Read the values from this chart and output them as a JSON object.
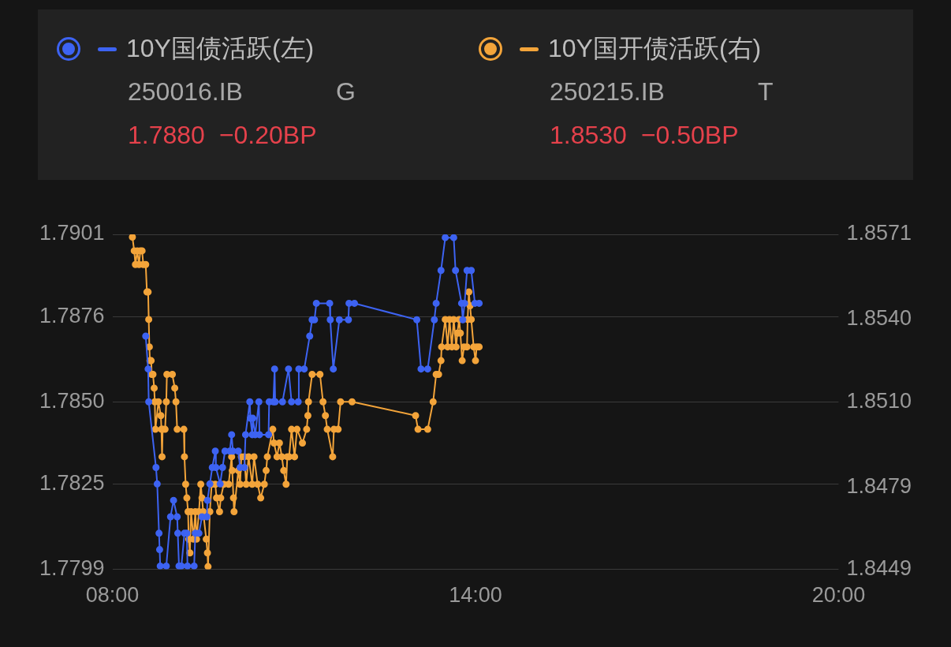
{
  "chart_data": {
    "type": "line",
    "legend": "top",
    "grid": "y",
    "marker": "circle",
    "line_style": "solid",
    "xlim": [
      8,
      20
    ],
    "xticks": [
      {
        "value": 8,
        "label": "08:00"
      },
      {
        "value": 14,
        "label": "14:00"
      },
      {
        "value": 20,
        "label": "20:00"
      }
    ],
    "ylim": [
      1.7799,
      1.7901
    ],
    "yticks": [
      1.7799,
      1.7825,
      {
        "value": 1.785,
        "label": "1.7850"
      },
      1.7876,
      1.7901
    ],
    "y2lim": [
      1.8449,
      1.8571
    ],
    "y2ticks": [
      1.8449,
      1.8479,
      {
        "value": 1.851,
        "label": "1.8510"
      },
      {
        "value": 1.854,
        "label": "1.8540"
      },
      1.8571
    ],
    "annotations": [
      "250016.IB",
      "G",
      "1.7880",
      "−0.20BP",
      "250215.IB",
      "T",
      "1.8530",
      "−0.50BP"
    ],
    "series": [
      {
        "name": "10Y国债活跃(左)",
        "color": "#3d63f2",
        "axis": "y",
        "x": [
          8.55,
          8.59,
          8.6,
          8.72,
          8.74,
          8.77,
          8.78,
          8.79,
          8.89,
          8.96,
          9.01,
          9.07,
          9.08,
          9.1,
          9.14,
          9.19,
          9.23,
          9.24,
          9.35,
          9.37,
          9.43,
          9.48,
          9.56,
          9.57,
          9.61,
          9.65,
          9.7,
          9.71,
          9.78,
          9.82,
          9.86,
          9.94,
          9.97,
          9.99,
          10.08,
          10.11,
          10.18,
          10.2,
          10.27,
          10.28,
          10.31,
          10.32,
          10.36,
          10.42,
          10.43,
          10.58,
          10.59,
          10.66,
          10.68,
          10.69,
          10.81,
          10.91,
          10.96,
          11.07,
          11.08,
          11.17,
          11.26,
          11.3,
          11.34,
          11.37,
          11.59,
          11.6,
          11.65,
          11.75,
          11.9,
          11.91,
          12,
          13.03,
          13.1,
          13.21,
          13.32,
          13.35,
          13.43,
          13.5,
          13.64,
          13.67,
          13.77,
          13.79,
          13.82,
          13.86,
          13.93,
          13.99,
          14.06
        ],
        "values": [
          1.787,
          1.786,
          1.785,
          1.783,
          1.7825,
          1.781,
          1.7805,
          1.78,
          1.78,
          1.7815,
          1.782,
          1.7815,
          1.781,
          1.78,
          1.78,
          1.781,
          1.781,
          1.78,
          1.78,
          1.781,
          1.781,
          1.7815,
          1.7815,
          1.782,
          1.7825,
          1.783,
          1.7835,
          1.783,
          1.7825,
          1.783,
          1.7835,
          1.7835,
          1.784,
          1.7835,
          1.7835,
          1.783,
          1.783,
          1.784,
          1.785,
          1.7845,
          1.784,
          1.7845,
          1.784,
          1.785,
          1.784,
          1.784,
          1.785,
          1.785,
          1.786,
          1.785,
          1.785,
          1.786,
          1.785,
          1.785,
          1.786,
          1.786,
          1.787,
          1.7875,
          1.7875,
          1.788,
          1.788,
          1.7875,
          1.786,
          1.7875,
          1.7875,
          1.788,
          1.788,
          1.7875,
          1.786,
          1.786,
          1.7875,
          1.788,
          1.789,
          1.79,
          1.79,
          1.789,
          1.788,
          1.7875,
          1.788,
          1.789,
          1.789,
          1.788,
          1.788
        ]
      },
      {
        "name": "10Y国开债活跃(右)",
        "color": "#f3a43a",
        "axis": "y2",
        "x": [
          8.33,
          8.36,
          8.38,
          8.41,
          8.44,
          8.46,
          8.49,
          8.51,
          8.55,
          8.57,
          8.59,
          8.6,
          8.61,
          8.62,
          8.64,
          8.65,
          8.67,
          8.69,
          8.7,
          8.71,
          8.76,
          8.8,
          8.81,
          8.82,
          8.83,
          8.87,
          8.89,
          8.9,
          8.99,
          9.03,
          9.05,
          9.07,
          9.18,
          9.19,
          9.21,
          9.23,
          9.25,
          9.26,
          9.28,
          9.3,
          9.34,
          9.37,
          9.39,
          9.43,
          9.46,
          9.48,
          9.5,
          9.55,
          9.57,
          9.58,
          9.61,
          9.64,
          9.7,
          9.72,
          9.77,
          9.79,
          9.84,
          9.92,
          9.97,
          9.98,
          10,
          10.01,
          10.08,
          10.11,
          10.13,
          10.18,
          10.21,
          10.25,
          10.31,
          10.34,
          10.4,
          10.45,
          10.51,
          10.54,
          10.56,
          10.65,
          10.67,
          10.72,
          10.76,
          10.8,
          10.83,
          10.87,
          10.89,
          10.92,
          10.96,
          11.01,
          11.05,
          11.14,
          11.21,
          11.23,
          11.24,
          11.3,
          11.43,
          11.48,
          11.52,
          11.55,
          11.64,
          11.66,
          11.73,
          11.77,
          11.96,
          13.01,
          13.05,
          13.21,
          13.3,
          13.35,
          13.39,
          13.43,
          13.44,
          13.5,
          13.54,
          13.57,
          13.61,
          13.64,
          13.68,
          13.7,
          13.73,
          13.75,
          13.78,
          13.81,
          13.86,
          13.87,
          13.89,
          13.91,
          13.93,
          13.97,
          14,
          14.02,
          14.06
        ],
        "values": [
          1.857,
          1.8565,
          1.856,
          1.8565,
          1.856,
          1.8565,
          1.8565,
          1.856,
          1.856,
          1.855,
          1.855,
          1.854,
          1.853,
          1.8525,
          1.8525,
          1.852,
          1.852,
          1.8515,
          1.851,
          1.85,
          1.851,
          1.8505,
          1.85,
          1.849,
          1.85,
          1.85,
          1.851,
          1.852,
          1.852,
          1.8515,
          1.851,
          1.85,
          1.85,
          1.849,
          1.848,
          1.8475,
          1.847,
          1.846,
          1.8455,
          1.847,
          1.846,
          1.847,
          1.846,
          1.847,
          1.848,
          1.8475,
          1.847,
          1.846,
          1.8455,
          1.845,
          1.847,
          1.848,
          1.848,
          1.8475,
          1.847,
          1.8475,
          1.848,
          1.848,
          1.849,
          1.8485,
          1.8475,
          1.847,
          1.8485,
          1.848,
          1.849,
          1.849,
          1.848,
          1.849,
          1.848,
          1.849,
          1.848,
          1.8475,
          1.848,
          1.8485,
          1.849,
          1.85,
          1.8495,
          1.849,
          1.8495,
          1.849,
          1.8485,
          1.848,
          1.849,
          1.849,
          1.85,
          1.849,
          1.85,
          1.8495,
          1.85,
          1.8505,
          1.851,
          1.852,
          1.852,
          1.851,
          1.8505,
          1.85,
          1.849,
          1.85,
          1.85,
          1.851,
          1.851,
          1.8505,
          1.85,
          1.85,
          1.851,
          1.852,
          1.852,
          1.8525,
          1.853,
          1.854,
          1.853,
          1.854,
          1.853,
          1.854,
          1.853,
          1.8535,
          1.854,
          1.8535,
          1.8525,
          1.853,
          1.853,
          1.854,
          1.855,
          1.8545,
          1.854,
          1.853,
          1.8525,
          1.853,
          1.853
        ]
      }
    ]
  }
}
